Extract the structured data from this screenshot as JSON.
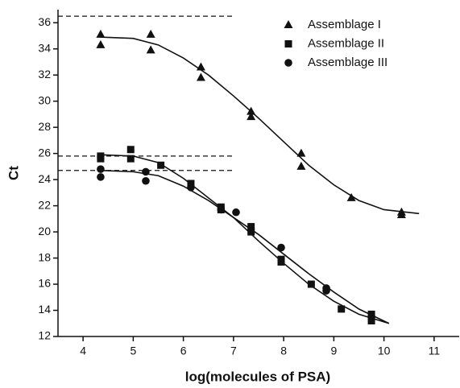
{
  "chart_data": {
    "type": "scatter",
    "xlabel": "log(molecules of PSA)",
    "ylabel": "Ct",
    "xlim": [
      3.5,
      11.5
    ],
    "ylim": [
      12,
      37
    ],
    "xticks": [
      4,
      5,
      6,
      7,
      8,
      9,
      10,
      11
    ],
    "yticks": [
      12,
      14,
      16,
      18,
      20,
      22,
      24,
      26,
      28,
      30,
      32,
      34,
      36
    ],
    "legend": "upper right",
    "series": [
      {
        "name": "Assemblage I",
        "marker": "triangle",
        "color": "#111111",
        "x": [
          4.35,
          4.35,
          5.35,
          5.35,
          6.35,
          6.35,
          7.35,
          7.35,
          8.35,
          8.35,
          9.35,
          10.35,
          10.35
        ],
        "values": [
          35.1,
          34.3,
          35.1,
          33.9,
          32.6,
          31.8,
          29.2,
          28.8,
          26.0,
          25.0,
          22.6,
          21.5,
          21.3
        ],
        "fit": {
          "x": [
            4.35,
            5.0,
            5.5,
            6.0,
            6.5,
            7.0,
            7.5,
            8.0,
            8.5,
            9.0,
            9.5,
            10.0,
            10.7
          ],
          "values": [
            34.9,
            34.8,
            34.3,
            33.3,
            32.0,
            30.4,
            28.7,
            26.9,
            25.1,
            23.6,
            22.4,
            21.7,
            21.4
          ]
        }
      },
      {
        "name": "Assemblage II",
        "marker": "square",
        "color": "#111111",
        "x": [
          4.35,
          4.35,
          4.95,
          4.95,
          5.55,
          6.15,
          6.75,
          6.75,
          7.35,
          7.35,
          7.95,
          7.95,
          8.55,
          9.15,
          9.75,
          9.75
        ],
        "values": [
          25.8,
          25.6,
          26.3,
          25.6,
          25.1,
          23.7,
          21.9,
          21.7,
          20.4,
          20.0,
          17.9,
          17.7,
          16.0,
          14.1,
          13.7,
          13.2
        ],
        "fit": {
          "x": [
            4.35,
            5.0,
            5.5,
            6.0,
            6.5,
            7.0,
            7.5,
            8.0,
            8.5,
            9.0,
            9.5,
            10.1
          ],
          "values": [
            25.9,
            25.8,
            25.3,
            24.1,
            22.6,
            21.1,
            19.3,
            17.6,
            16.0,
            14.7,
            13.7,
            13.0
          ]
        }
      },
      {
        "name": "Assemblage III",
        "marker": "circle",
        "color": "#111111",
        "x": [
          4.35,
          4.35,
          5.25,
          5.25,
          6.15,
          6.75,
          7.05,
          7.95,
          8.85,
          8.85,
          9.75
        ],
        "values": [
          24.8,
          24.2,
          24.6,
          23.9,
          23.4,
          21.7,
          21.5,
          18.8,
          15.7,
          15.5,
          13.5
        ],
        "fit": {
          "x": [
            4.35,
            5.0,
            5.5,
            6.0,
            6.5,
            7.0,
            7.5,
            8.0,
            8.5,
            9.0,
            9.5,
            10.1
          ],
          "values": [
            24.7,
            24.6,
            24.3,
            23.5,
            22.4,
            21.1,
            19.8,
            18.3,
            16.8,
            15.4,
            14.1,
            13.0
          ]
        }
      }
    ],
    "reference_lines": [
      {
        "y": 36.5,
        "x": [
          3.5,
          7.0
        ]
      },
      {
        "y": 25.8,
        "x": [
          3.5,
          7.0
        ]
      },
      {
        "y": 24.7,
        "x": [
          3.5,
          7.0
        ]
      }
    ]
  }
}
